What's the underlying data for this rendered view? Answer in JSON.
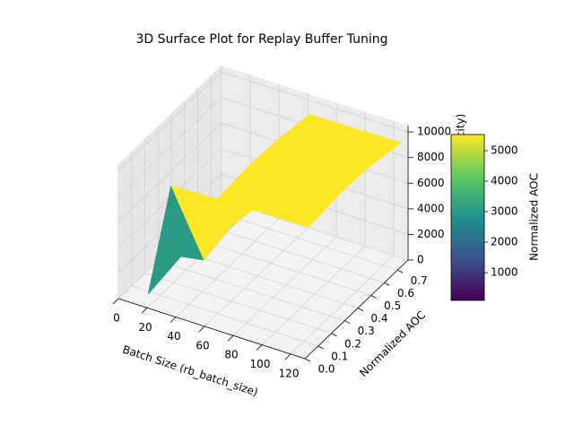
{
  "chart_data": {
    "type": "surface3d",
    "title": "3D Surface Plot for Replay Buffer Tuning",
    "x_label": "Batch Size (rb_batch_size)",
    "y_label": "Normalized AOC",
    "z_label": "city)",
    "colorbar_label": "Normalized AOC",
    "x": [
      16,
      32,
      64,
      128
    ],
    "y": [
      0.05,
      0.3,
      0.5,
      0.75
    ],
    "z": [
      [
        400,
        9500,
        9600,
        9700
      ],
      [
        900,
        1200,
        9800,
        10000
      ],
      [
        1500,
        1800,
        9700,
        9900
      ],
      [
        300,
        1400,
        9300,
        9400
      ]
    ],
    "xlim": [
      0,
      130
    ],
    "ylim": [
      0,
      0.78
    ],
    "zlim": [
      0,
      10500
    ],
    "xticks": [
      0,
      20,
      40,
      60,
      80,
      100,
      120
    ],
    "yticks": [
      {
        "value": 0,
        "label": "0.0"
      },
      0.1,
      0.2,
      0.3,
      0.4,
      0.5,
      0.6,
      0.7
    ],
    "zticks": [
      0,
      2000,
      4000,
      6000,
      8000,
      10000
    ],
    "clim": [
      90,
      5530
    ],
    "cticks": [
      1000,
      2000,
      3000,
      4000,
      5000
    ],
    "grid": true
  }
}
